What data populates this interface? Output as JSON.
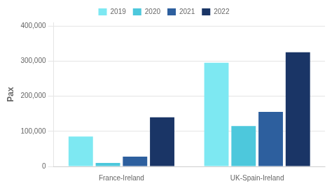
{
  "chart_data": {
    "type": "bar",
    "ylabel": "Pax",
    "categories": [
      "France-Ireland",
      "UK-Spain-Ireland"
    ],
    "series": [
      {
        "name": "2019",
        "color": "#7de8f2",
        "values": [
          85000,
          295000
        ]
      },
      {
        "name": "2020",
        "color": "#4dc8dc",
        "values": [
          10000,
          115000
        ]
      },
      {
        "name": "2021",
        "color": "#2d5f9e",
        "values": [
          28000,
          155000
        ]
      },
      {
        "name": "2022",
        "color": "#1a3566",
        "values": [
          140000,
          325000
        ]
      }
    ],
    "ylim": [
      0,
      410000
    ],
    "yticks": [
      0,
      {
        "value": 100000,
        "label": "100,000"
      },
      {
        "value": 200000,
        "label": "200,000"
      },
      {
        "value": 300000,
        "label": "300,000"
      },
      {
        "value": 400000,
        "label": "400,000"
      }
    ],
    "grid": true,
    "legend": "top"
  }
}
